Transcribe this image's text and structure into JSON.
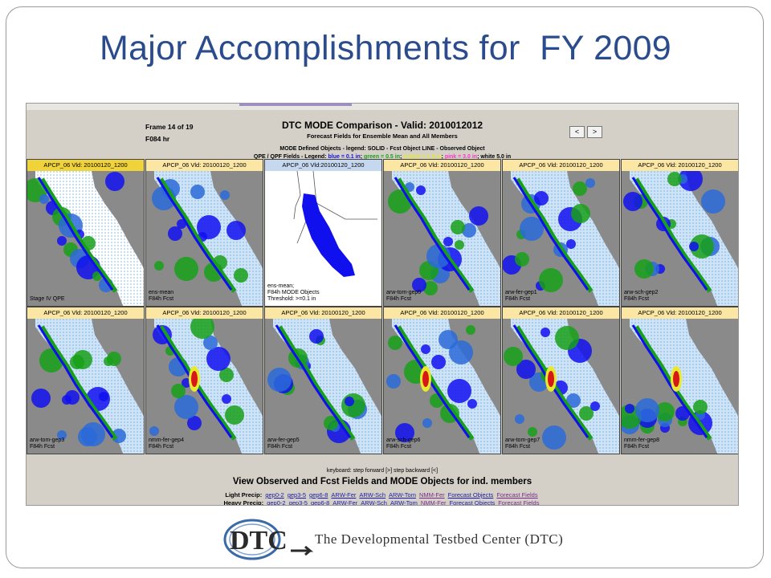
{
  "slide": {
    "title": "Major Accomplishments for  FY 2009"
  },
  "header": {
    "frame": "Frame 14 of 19",
    "lead": "F084 hr",
    "title": "DTC MODE Comparison - Valid: 2010012012",
    "subtitle": "Forecast Fields for Ensemble Mean and All Members",
    "legend_objects": "MODE Defined Objects - legend: SOLID - Fcst Object LINE - Observed Object",
    "legend_prefix": "QPE / QPF Fields - Legend: ",
    "legend_blue": "blue = 0.1 in",
    "legend_green": "green = 0.5 in",
    "legend_yellow": "yellow = 1.0 in",
    "legend_pink": "pink = 3.0 in",
    "legend_white": "white 5.0 in",
    "prev": "<",
    "next": ">"
  },
  "colors": {
    "blue": "#1010ee",
    "green": "#18a018",
    "yellow": "#e8e830",
    "pink": "#ff33cc",
    "red": "#d81818"
  },
  "cells": [
    {
      "label": "APCP_06  Vld: 20100120_1200",
      "caption": "Stage IV QPE",
      "kind": "obs"
    },
    {
      "label": "APCP_06  Vld: 20100120_1200",
      "caption": "ens-mean\nF84h Fcst",
      "kind": "fcst"
    },
    {
      "label": "APCP_06 Vld:20100120_1200",
      "caption": "ens-mean;\nF84h MODE Objects\nThreshold: >=0.1 in",
      "kind": "mode"
    },
    {
      "label": "APCP_06  Vld: 20100120_1200",
      "caption": "arw-tom-gep0\nF84h Fcst",
      "kind": "fcst"
    },
    {
      "label": "APCP_06  Vld: 20100120_1200",
      "caption": "arw-fer-gep1\nF84h Fcst",
      "kind": "fcst"
    },
    {
      "label": "APCP_06  Vld: 20100120_1200",
      "caption": "arw-sch-gep2\nF84h Fcst",
      "kind": "fcst"
    },
    {
      "label": "APCP_06  Vld: 20100120_1200",
      "caption": "arw-tom-gep3\nF84h Fcst",
      "kind": "fcst"
    },
    {
      "label": "APCP_06  Vld: 20100120_1200",
      "caption": "nmm-fer-gep4\nF84h Fcst",
      "kind": "fcst"
    },
    {
      "label": "APCP_06  Vld: 20100120_1200",
      "caption": "arw-fer-gep5\nF84h Fcst",
      "kind": "fcst"
    },
    {
      "label": "APCP_06  Vld: 20100120_1200",
      "caption": "arw-sch-gep6\nF84h Fcst",
      "kind": "fcst"
    },
    {
      "label": "APCP_06  Vld: 20100120_1200",
      "caption": "arw-tom-gep7\nF84h Fcst",
      "kind": "fcst"
    },
    {
      "label": "APCP_06  Vld: 20100120_1200",
      "caption": "nmm-fer-gep8\nF84h Fcst",
      "kind": "fcst"
    }
  ],
  "footer": {
    "keyboard": "keyboard: step forward [>] step backward [<]",
    "title": "View Observed and Fcst Fields and MODE Objects for ind. members",
    "light_label": "Light Precip:",
    "heavy_label": "Heavy Precip:",
    "light_links": [
      "gep0-2",
      "gep3-5",
      "gep6-8",
      "ARW-Fer",
      "ARW-Sch",
      "ARW-Tom",
      "NMM-Fer",
      "Forecast Objects",
      "Forecast Fields"
    ],
    "heavy_links": [
      "gep0-2",
      "gep3-5",
      "gep6-8",
      "ARW-Fer",
      "ARW-Sch",
      "ARW-Tom",
      "NMM-Fer",
      "Forecast Objects",
      "Forecast Fields"
    ]
  },
  "logo": {
    "mark": "DTC",
    "text": "The Developmental Testbed Center (DTC)"
  }
}
